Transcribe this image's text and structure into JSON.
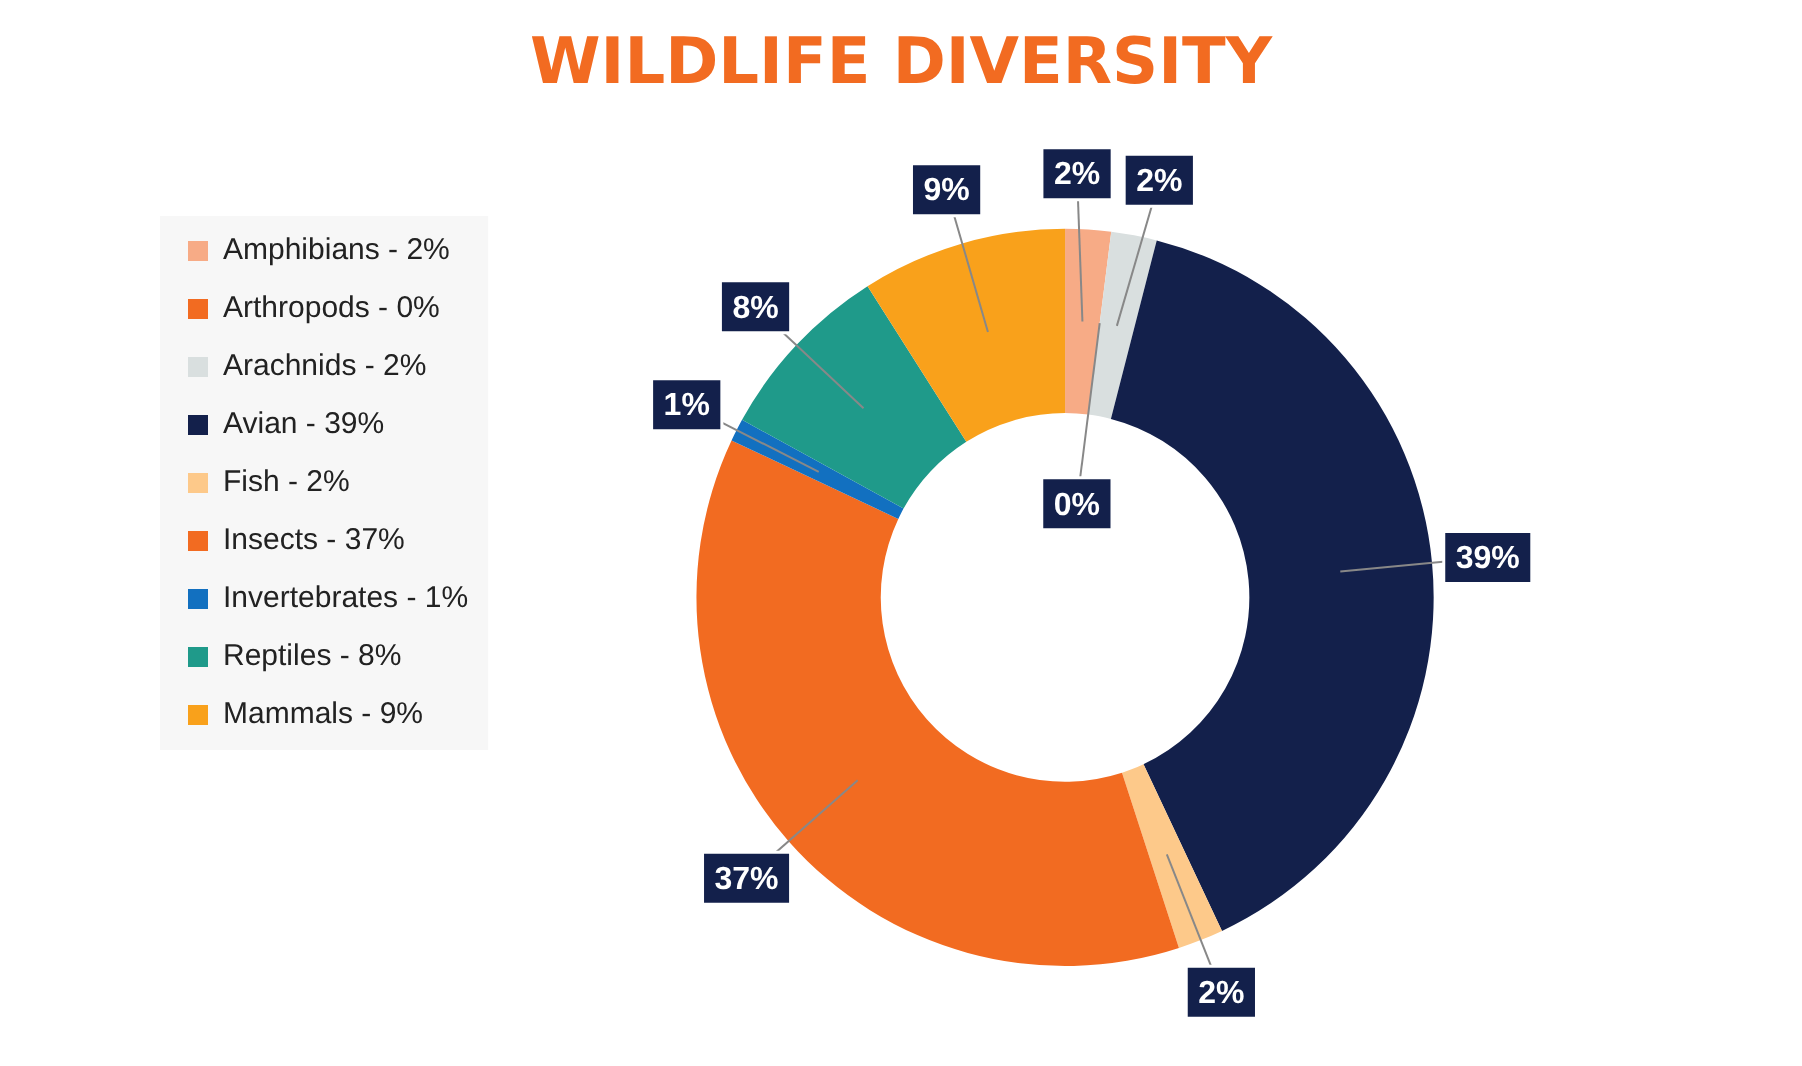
{
  "chart_data": {
    "type": "donut",
    "title": "WILDLIFE DIVERSITY",
    "categories": [
      "Amphibians - 2%",
      "Arthropods - 0%",
      "Arachnids - 2%",
      "Avian - 39%",
      "Fish - 2%",
      "Insects - 37%",
      "Invertebrates - 1%",
      "Reptiles - 8%",
      "Mammals - 9%"
    ],
    "values": [
      2,
      0,
      2,
      39,
      2,
      37,
      1,
      8,
      9
    ],
    "value_labels": [
      "2%",
      "0%",
      "2%",
      "39%",
      "2%",
      "37%",
      "1%",
      "8%",
      "9%"
    ],
    "colors": [
      "#f7ab86",
      "#f26b21",
      "#d9dfdf",
      "#13204b",
      "#fdc98a",
      "#f26b21",
      "#1270c0",
      "#1f9a8a",
      "#f9a11b"
    ],
    "legend": "left"
  }
}
